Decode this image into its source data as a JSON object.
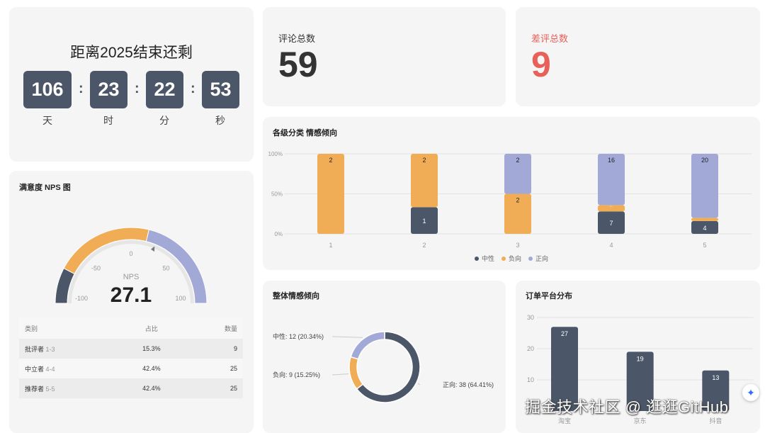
{
  "countdown": {
    "title": "距离2025结束还剩",
    "days": "106",
    "hours": "23",
    "minutes": "22",
    "seconds": "53",
    "units": [
      "天",
      "时",
      "分",
      "秒"
    ],
    "separator": ":"
  },
  "stats": {
    "total_label": "评论总数",
    "total_value": "59",
    "bad_label": "差评总数",
    "bad_value": "9",
    "bad_color": "#e8605a"
  },
  "colors": {
    "neutral": "#4b5768",
    "negative": "#f0ad55",
    "positive": "#a3a9d6"
  },
  "nps": {
    "title": "满意度 NPS 图",
    "label": "NPS",
    "value": 27.1,
    "value_text": "27.1",
    "ticks": [
      "-100",
      "-50",
      "0",
      "50",
      "100"
    ],
    "table": {
      "headers": [
        "类别",
        "占比",
        "数量"
      ],
      "rows": [
        {
          "name": "批评者",
          "range": "1-3",
          "pct": "15.3%",
          "count": "9"
        },
        {
          "name": "中立者",
          "range": "4-4",
          "pct": "42.4%",
          "count": "25"
        },
        {
          "name": "推荐者",
          "range": "5-5",
          "pct": "42.4%",
          "count": "25"
        }
      ]
    }
  },
  "chart_data": [
    {
      "type": "bar",
      "stacked": "percent",
      "title": "各级分类 情感倾向",
      "categories": [
        "1",
        "2",
        "3",
        "4",
        "5"
      ],
      "yticks": [
        "0%",
        "50%",
        "100%"
      ],
      "legend_position": "bottom",
      "series": [
        {
          "name": "中性",
          "values": [
            0,
            1,
            0,
            7,
            4
          ]
        },
        {
          "name": "负向",
          "values": [
            2,
            2,
            2,
            2,
            1
          ]
        },
        {
          "name": "正向",
          "values": [
            0,
            0,
            2,
            16,
            20
          ]
        }
      ]
    },
    {
      "type": "pie",
      "donut": true,
      "title": "整体情感倾向",
      "slices": [
        {
          "name": "正向",
          "value": 38,
          "label": "正向: 38 (64.41%)"
        },
        {
          "name": "负向",
          "value": 9,
          "label": "负向: 9 (15.25%)"
        },
        {
          "name": "中性",
          "value": 12,
          "label": "中性: 12 (20.34%)"
        }
      ]
    },
    {
      "type": "bar",
      "title": "订单平台分布",
      "categories": [
        "淘宝",
        "京东",
        "抖音"
      ],
      "values": [
        27,
        19,
        13
      ],
      "ylim": [
        0,
        30
      ],
      "yticks": [
        "10",
        "20",
        "30"
      ],
      "grid": true
    }
  ],
  "watermark": "掘金技术社区 @ 逛逛GitHub",
  "fab_icon": "sparkle-icon"
}
